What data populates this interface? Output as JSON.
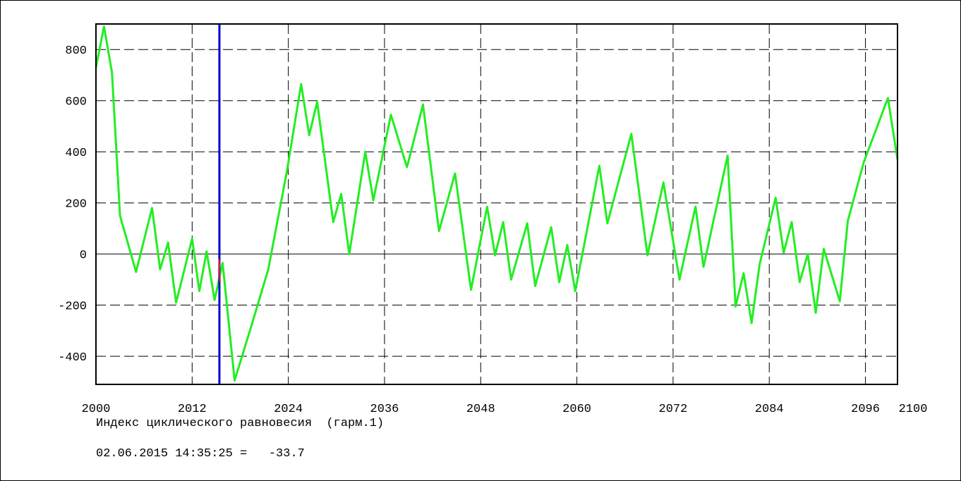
{
  "chart_data": {
    "type": "line",
    "title": "",
    "xlabel": "",
    "ylabel": "",
    "xlim": [
      2000,
      2100
    ],
    "ylim": [
      -510,
      900
    ],
    "x_ticks": [
      "2000",
      "2012",
      "2024",
      "2036",
      "2048",
      "2060",
      "2072",
      "2084",
      "2096",
      "2100"
    ],
    "y_ticks": [
      "800",
      "600",
      "400",
      "200",
      "0",
      "-200",
      "-400"
    ],
    "grid": true,
    "colors": {
      "series": "#22ee22",
      "marker": "#0000cc",
      "marker_tail": "#ee2222",
      "grid": "#000000"
    },
    "cursor": {
      "x": 2015.4
    },
    "series": [
      {
        "x": [
          2000,
          2001,
          2002,
          2003,
          2005,
          2007,
          2008,
          2009,
          2010,
          2012,
          2012.9,
          2013.8,
          2014.8,
          2015.8,
          2017.3,
          2019.5,
          2021.5,
          2023.8,
          2025.6,
          2026.6,
          2027.6,
          2029.6,
          2030.6,
          2031.6,
          2033.6,
          2034.6,
          2036.8,
          2038.8,
          2040.8,
          2042.8,
          2044.8,
          2046.8,
          2048.8,
          2049.8,
          2050.8,
          2051.8,
          2053.8,
          2054.8,
          2056.8,
          2057.8,
          2058.8,
          2059.8,
          2062.8,
          2063.8,
          2066.8,
          2068.8,
          2070.8,
          2072.8,
          2074.8,
          2075.8,
          2078.8,
          2079.8,
          2080.8,
          2081.8,
          2082.8,
          2084.8,
          2085.8,
          2086.8,
          2087.8,
          2088.8,
          2089.8,
          2090.8,
          2092.8,
          2093.8,
          2095.8,
          2098.8,
          2100
        ],
        "values": [
          730,
          890,
          710,
          150,
          -70,
          180,
          -60,
          45,
          -190,
          60,
          -145,
          10,
          -180,
          -35,
          -495,
          -270,
          -60,
          320,
          665,
          465,
          595,
          125,
          235,
          0,
          400,
          210,
          545,
          340,
          585,
          90,
          315,
          -140,
          185,
          -5,
          125,
          -100,
          120,
          -125,
          105,
          -110,
          35,
          -145,
          345,
          120,
          470,
          -5,
          280,
          -100,
          185,
          -50,
          385,
          -205,
          -75,
          -270,
          -40,
          220,
          5,
          125,
          -110,
          0,
          -230,
          20,
          -185,
          130,
          360,
          610,
          370
        ]
      }
    ]
  },
  "captions": {
    "series_title": "Индекс циклического равновесия  (гарм.1)",
    "readout": "02.06.2015 14:35:25 =   -33.7"
  }
}
